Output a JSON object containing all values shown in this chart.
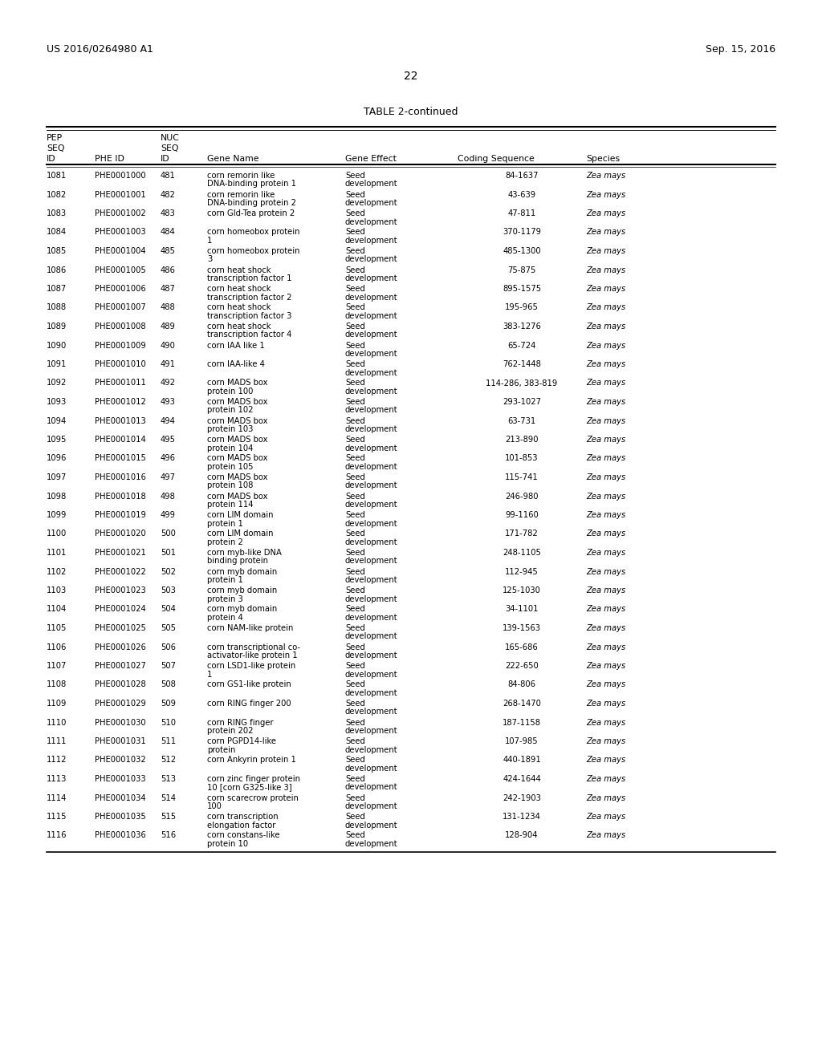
{
  "header_left": "US 2016/0264980 A1",
  "header_right": "Sep. 15, 2016",
  "page_number": "22",
  "table_title": "TABLE 2-continued",
  "rows": [
    [
      "1081",
      "PHE0001000",
      "481",
      "corn remorin like\nDNA-binding protein 1",
      "Seed\ndevelopment",
      "84-1637",
      "Zea mays"
    ],
    [
      "1082",
      "PHE0001001",
      "482",
      "corn remorin like\nDNA-binding protein 2",
      "Seed\ndevelopment",
      "43-639",
      "Zea mays"
    ],
    [
      "1083",
      "PHE0001002",
      "483",
      "corn Gld-Tea protein 2",
      "Seed\ndevelopment",
      "47-811",
      "Zea mays"
    ],
    [
      "1084",
      "PHE0001003",
      "484",
      "corn homeobox protein\n1",
      "Seed\ndevelopment",
      "370-1179",
      "Zea mays"
    ],
    [
      "1085",
      "PHE0001004",
      "485",
      "corn homeobox protein\n3",
      "Seed\ndevelopment",
      "485-1300",
      "Zea mays"
    ],
    [
      "1086",
      "PHE0001005",
      "486",
      "corn heat shock\ntranscription factor 1",
      "Seed\ndevelopment",
      "75-875",
      "Zea mays"
    ],
    [
      "1087",
      "PHE0001006",
      "487",
      "corn heat shock\ntranscription factor 2",
      "Seed\ndevelopment",
      "895-1575",
      "Zea mays"
    ],
    [
      "1088",
      "PHE0001007",
      "488",
      "corn heat shock\ntranscription factor 3",
      "Seed\ndevelopment",
      "195-965",
      "Zea mays"
    ],
    [
      "1089",
      "PHE0001008",
      "489",
      "corn heat shock\ntranscription factor 4",
      "Seed\ndevelopment",
      "383-1276",
      "Zea mays"
    ],
    [
      "1090",
      "PHE0001009",
      "490",
      "corn IAA like 1",
      "Seed\ndevelopment",
      "65-724",
      "Zea mays"
    ],
    [
      "1091",
      "PHE0001010",
      "491",
      "corn IAA-like 4",
      "Seed\ndevelopment",
      "762-1448",
      "Zea mays"
    ],
    [
      "1092",
      "PHE0001011",
      "492",
      "corn MADS box\nprotein 100",
      "Seed\ndevelopment",
      "114-286, 383-819",
      "Zea mays"
    ],
    [
      "1093",
      "PHE0001012",
      "493",
      "corn MADS box\nprotein 102",
      "Seed\ndevelopment",
      "293-1027",
      "Zea mays"
    ],
    [
      "1094",
      "PHE0001013",
      "494",
      "corn MADS box\nprotein 103",
      "Seed\ndevelopment",
      "63-731",
      "Zea mays"
    ],
    [
      "1095",
      "PHE0001014",
      "495",
      "corn MADS box\nprotein 104",
      "Seed\ndevelopment",
      "213-890",
      "Zea mays"
    ],
    [
      "1096",
      "PHE0001015",
      "496",
      "corn MADS box\nprotein 105",
      "Seed\ndevelopment",
      "101-853",
      "Zea mays"
    ],
    [
      "1097",
      "PHE0001016",
      "497",
      "corn MADS box\nprotein 108",
      "Seed\ndevelopment",
      "115-741",
      "Zea mays"
    ],
    [
      "1098",
      "PHE0001018",
      "498",
      "corn MADS box\nprotein 114",
      "Seed\ndevelopment",
      "246-980",
      "Zea mays"
    ],
    [
      "1099",
      "PHE0001019",
      "499",
      "corn LIM domain\nprotein 1",
      "Seed\ndevelopment",
      "99-1160",
      "Zea mays"
    ],
    [
      "1100",
      "PHE0001020",
      "500",
      "corn LIM domain\nprotein 2",
      "Seed\ndevelopment",
      "171-782",
      "Zea mays"
    ],
    [
      "1101",
      "PHE0001021",
      "501",
      "corn myb-like DNA\nbinding protein",
      "Seed\ndevelopment",
      "248-1105",
      "Zea mays"
    ],
    [
      "1102",
      "PHE0001022",
      "502",
      "corn myb domain\nprotein 1",
      "Seed\ndevelopment",
      "112-945",
      "Zea mays"
    ],
    [
      "1103",
      "PHE0001023",
      "503",
      "corn myb domain\nprotein 3",
      "Seed\ndevelopment",
      "125-1030",
      "Zea mays"
    ],
    [
      "1104",
      "PHE0001024",
      "504",
      "corn myb domain\nprotein 4",
      "Seed\ndevelopment",
      "34-1101",
      "Zea mays"
    ],
    [
      "1105",
      "PHE0001025",
      "505",
      "corn NAM-like protein",
      "Seed\ndevelopment",
      "139-1563",
      "Zea mays"
    ],
    [
      "1106",
      "PHE0001026",
      "506",
      "corn transcriptional co-\nactivator-like protein 1",
      "Seed\ndevelopment",
      "165-686",
      "Zea mays"
    ],
    [
      "1107",
      "PHE0001027",
      "507",
      "corn LSD1-like protein\n1",
      "Seed\ndevelopment",
      "222-650",
      "Zea mays"
    ],
    [
      "1108",
      "PHE0001028",
      "508",
      "corn GS1-like protein",
      "Seed\ndevelopment",
      "84-806",
      "Zea mays"
    ],
    [
      "1109",
      "PHE0001029",
      "509",
      "corn RING finger 200",
      "Seed\ndevelopment",
      "268-1470",
      "Zea mays"
    ],
    [
      "1110",
      "PHE0001030",
      "510",
      "corn RING finger\nprotein 202",
      "Seed\ndevelopment",
      "187-1158",
      "Zea mays"
    ],
    [
      "1111",
      "PHE0001031",
      "511",
      "corn PGPD14-like\nprotein",
      "Seed\ndevelopment",
      "107-985",
      "Zea mays"
    ],
    [
      "1112",
      "PHE0001032",
      "512",
      "corn Ankyrin protein 1",
      "Seed\ndevelopment",
      "440-1891",
      "Zea mays"
    ],
    [
      "1113",
      "PHE0001033",
      "513",
      "corn zinc finger protein\n10 [corn G325-like 3]",
      "Seed\ndevelopment",
      "424-1644",
      "Zea mays"
    ],
    [
      "1114",
      "PHE0001034",
      "514",
      "corn scarecrow protein\n100",
      "Seed\ndevelopment",
      "242-1903",
      "Zea mays"
    ],
    [
      "1115",
      "PHE0001035",
      "515",
      "corn transcription\nelongation factor",
      "Seed\ndevelopment",
      "131-1234",
      "Zea mays"
    ],
    [
      "1116",
      "PHE0001036",
      "516",
      "corn constans-like\nprotein 10",
      "Seed\ndevelopment",
      "128-904",
      "Zea mays"
    ]
  ],
  "bg_color": "#ffffff",
  "text_color": "#000000"
}
